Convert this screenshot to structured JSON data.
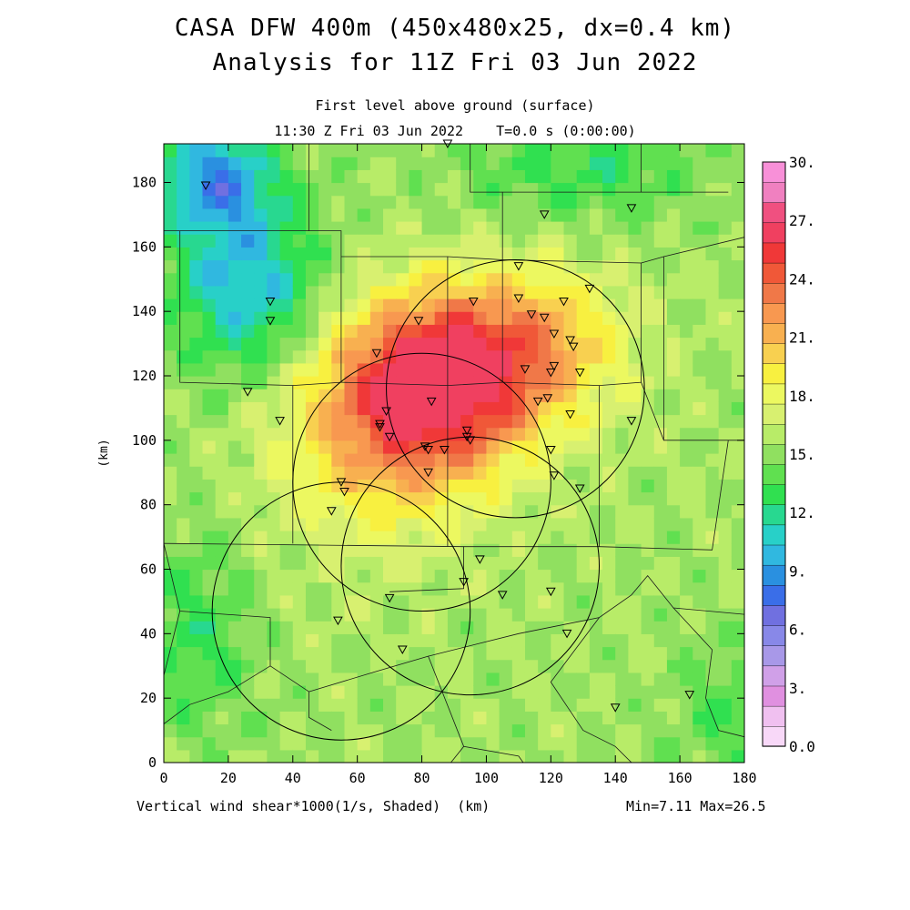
{
  "header": {
    "title_line1": "CASA DFW 400m (450x480x25, dx=0.4 km)",
    "title_line2": "Analysis for 11Z Fri 03 Jun 2022",
    "subtitle_line1": "First level above ground (surface)",
    "subtitle_line2": "11:30 Z Fri 03 Jun 2022    T=0.0 s (0:00:00)"
  },
  "footer": {
    "variable_label": "Vertical wind shear*1000(1/s, Shaded)  (km)",
    "minmax": "Min=7.11 Max=26.5"
  },
  "chart_data": {
    "type": "heatmap",
    "title": "CASA DFW 400m (450x480x25, dx=0.4 km)",
    "xlabel": "(km)",
    "ylabel": "(km)",
    "xlim": [
      0,
      180
    ],
    "ylim": [
      0,
      192
    ],
    "x_ticks": [
      0,
      20,
      40,
      60,
      80,
      100,
      120,
      140,
      160,
      180
    ],
    "y_ticks": [
      0,
      20,
      40,
      60,
      80,
      100,
      120,
      140,
      160,
      180
    ],
    "colorbar": {
      "range": [
        0,
        30
      ],
      "tick_labels": [
        "30.",
        "27.",
        "24.",
        "21.",
        "18.",
        "15.",
        "12.",
        "9.",
        "6.",
        "3.",
        "0.0"
      ],
      "colors": [
        "#f8d8f8",
        "#f0c0f0",
        "#e090e0",
        "#d0a0e8",
        "#a898e8",
        "#8888e8",
        "#7070e0",
        "#3a6ee8",
        "#2a90e0",
        "#30b8e0",
        "#28d0c8",
        "#28d890",
        "#30e050",
        "#60e050",
        "#90e060",
        "#b8ec68",
        "#d8f070",
        "#ecf860",
        "#f8f040",
        "#f8d050",
        "#f8b050",
        "#f89850",
        "#f07848",
        "#f05838",
        "#f03838",
        "#f04060",
        "#f05080",
        "#f080c0",
        "#f890d8"
      ]
    },
    "field_min": 7.11,
    "field_max": 26.5,
    "field_centers": [
      {
        "x": 83,
        "y": 118,
        "v": 26.5
      },
      {
        "x": 115,
        "y": 130,
        "v": 22.0
      },
      {
        "x": 65,
        "y": 95,
        "v": 18.0
      },
      {
        "x": 25,
        "y": 150,
        "v": 8.5
      },
      {
        "x": 15,
        "y": 182,
        "v": 7.2
      }
    ],
    "radar_circles_km": [
      {
        "x": 109,
        "y": 116,
        "r": 40
      },
      {
        "x": 80,
        "y": 87,
        "r": 40
      },
      {
        "x": 95,
        "y": 61,
        "r": 40
      },
      {
        "x": 55,
        "y": 47,
        "r": 40
      }
    ],
    "stations_km": [
      [
        88,
        192
      ],
      [
        13,
        179
      ],
      [
        118,
        170
      ],
      [
        145,
        172
      ],
      [
        110,
        154
      ],
      [
        33,
        143
      ],
      [
        33,
        137
      ],
      [
        96,
        143
      ],
      [
        110,
        144
      ],
      [
        114,
        139
      ],
      [
        118,
        138
      ],
      [
        124,
        143
      ],
      [
        132,
        147
      ],
      [
        79,
        137
      ],
      [
        66,
        127
      ],
      [
        121,
        133
      ],
      [
        126,
        131
      ],
      [
        127,
        129
      ],
      [
        112,
        122
      ],
      [
        120,
        121
      ],
      [
        121,
        123
      ],
      [
        129,
        121
      ],
      [
        26,
        115
      ],
      [
        83,
        112
      ],
      [
        116,
        112
      ],
      [
        119,
        113
      ],
      [
        126,
        108
      ],
      [
        145,
        106
      ],
      [
        36,
        106
      ],
      [
        69,
        109
      ],
      [
        67,
        105
      ],
      [
        67,
        104
      ],
      [
        70,
        101
      ],
      [
        94,
        103
      ],
      [
        94,
        101
      ],
      [
        95,
        100
      ],
      [
        81,
        98
      ],
      [
        82,
        97
      ],
      [
        87,
        97
      ],
      [
        120,
        97
      ],
      [
        82,
        90
      ],
      [
        121,
        89
      ],
      [
        55,
        87
      ],
      [
        56,
        84
      ],
      [
        129,
        85
      ],
      [
        52,
        78
      ],
      [
        98,
        63
      ],
      [
        93,
        56
      ],
      [
        120,
        53
      ],
      [
        105,
        52
      ],
      [
        70,
        51
      ],
      [
        54,
        44
      ],
      [
        125,
        40
      ],
      [
        74,
        35
      ],
      [
        140,
        17
      ],
      [
        163,
        21
      ]
    ]
  }
}
